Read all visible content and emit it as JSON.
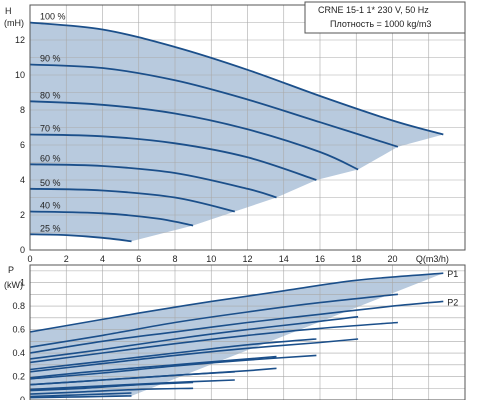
{
  "chart_data": [
    {
      "type": "line",
      "xlabel": "Q(m3/h)",
      "ylabel_top": "H",
      "ylabel_unit": "(mH)",
      "xlim": [
        0,
        24
      ],
      "ylim": [
        0,
        14
      ],
      "x_ticks": [
        0,
        2,
        4,
        6,
        8,
        10,
        12,
        14,
        16,
        18,
        20
      ],
      "y_ticks": [
        0,
        2,
        4,
        6,
        8,
        10,
        12
      ],
      "grid": true,
      "info_box": [
        "CRNE 15-1   1* 230 V, 50 Hz",
        "Плотность = 1000 kg/m3"
      ],
      "series": [
        {
          "name": "100 %",
          "x": [
            0,
            4,
            8,
            12,
            16,
            20,
            22.8
          ],
          "y": [
            13.0,
            12.6,
            11.6,
            10.3,
            8.8,
            7.4,
            6.6
          ]
        },
        {
          "name": "90 %",
          "x": [
            0,
            4,
            8,
            12,
            16,
            20.3
          ],
          "y": [
            10.6,
            10.4,
            9.7,
            8.6,
            7.3,
            5.9
          ]
        },
        {
          "name": "80 %",
          "x": [
            0,
            4,
            8,
            12,
            16,
            18.1
          ],
          "y": [
            8.5,
            8.3,
            7.8,
            6.9,
            5.6,
            4.6
          ]
        },
        {
          "name": "70 %",
          "x": [
            0,
            4,
            8,
            12,
            15.8
          ],
          "y": [
            6.6,
            6.5,
            6.1,
            5.3,
            4.0
          ]
        },
        {
          "name": "60 %",
          "x": [
            0,
            4,
            8,
            12,
            13.6
          ],
          "y": [
            4.9,
            4.8,
            4.4,
            3.5,
            3.0
          ]
        },
        {
          "name": "50 %",
          "x": [
            0,
            4,
            8,
            11.3
          ],
          "y": [
            3.5,
            3.4,
            3.0,
            2.2
          ]
        },
        {
          "name": "40 %",
          "x": [
            0,
            4,
            7,
            9.0
          ],
          "y": [
            2.2,
            2.1,
            1.8,
            1.4
          ]
        },
        {
          "name": "25 %",
          "x": [
            0,
            2,
            4,
            5.6
          ],
          "y": [
            0.9,
            0.85,
            0.7,
            0.5
          ]
        }
      ]
    },
    {
      "type": "line",
      "ylabel_top": "P",
      "ylabel_unit": "(kW)",
      "xlim": [
        0,
        24
      ],
      "ylim": [
        0,
        1.15
      ],
      "y_ticks": [
        0,
        0.2,
        0.4,
        0.6,
        0.8,
        1
      ],
      "grid": true,
      "series": [
        {
          "name": "P1",
          "x": [
            0,
            3,
            6,
            10,
            14,
            18,
            22.8
          ],
          "y": [
            0.58,
            0.66,
            0.74,
            0.84,
            0.93,
            1.02,
            1.08
          ]
        },
        {
          "name": "P2",
          "x": [
            0,
            4,
            8,
            12,
            16,
            20,
            22.8
          ],
          "y": [
            0.4,
            0.5,
            0.58,
            0.66,
            0.73,
            0.8,
            0.84
          ]
        },
        {
          "name": "",
          "x": [
            0,
            4,
            8,
            12,
            16,
            20.3
          ],
          "y": [
            0.45,
            0.55,
            0.66,
            0.75,
            0.83,
            0.9
          ]
        },
        {
          "name": "",
          "x": [
            0,
            4,
            8,
            12,
            16,
            20.3
          ],
          "y": [
            0.32,
            0.4,
            0.48,
            0.55,
            0.61,
            0.66
          ]
        },
        {
          "name": "",
          "x": [
            0,
            4,
            8,
            12,
            16,
            18.1
          ],
          "y": [
            0.35,
            0.43,
            0.52,
            0.6,
            0.67,
            0.71
          ]
        },
        {
          "name": "",
          "x": [
            0,
            4,
            8,
            12,
            16,
            18.1
          ],
          "y": [
            0.24,
            0.31,
            0.38,
            0.44,
            0.49,
            0.52
          ]
        },
        {
          "name": "",
          "x": [
            0,
            4,
            8,
            12,
            15.8
          ],
          "y": [
            0.26,
            0.33,
            0.4,
            0.47,
            0.52
          ]
        },
        {
          "name": "",
          "x": [
            0,
            4,
            8,
            12,
            15.8
          ],
          "y": [
            0.18,
            0.23,
            0.29,
            0.34,
            0.38
          ]
        },
        {
          "name": "",
          "x": [
            0,
            4,
            8,
            12,
            13.6
          ],
          "y": [
            0.19,
            0.25,
            0.3,
            0.35,
            0.37
          ]
        },
        {
          "name": "",
          "x": [
            0,
            4,
            8,
            12,
            13.6
          ],
          "y": [
            0.13,
            0.17,
            0.21,
            0.25,
            0.27
          ]
        },
        {
          "name": "",
          "x": [
            0,
            4,
            8,
            11.3
          ],
          "y": [
            0.13,
            0.17,
            0.21,
            0.24
          ]
        },
        {
          "name": "",
          "x": [
            0,
            4,
            8,
            11.3
          ],
          "y": [
            0.09,
            0.12,
            0.15,
            0.17
          ]
        },
        {
          "name": "",
          "x": [
            0,
            3,
            6,
            9.0
          ],
          "y": [
            0.08,
            0.1,
            0.13,
            0.15
          ]
        },
        {
          "name": "",
          "x": [
            0,
            3,
            6,
            9.0
          ],
          "y": [
            0.05,
            0.07,
            0.09,
            0.1
          ]
        },
        {
          "name": "",
          "x": [
            0,
            2,
            4,
            5.6
          ],
          "y": [
            0.03,
            0.04,
            0.05,
            0.06
          ]
        },
        {
          "name": "",
          "x": [
            0,
            2,
            4,
            5.6
          ],
          "y": [
            0.02,
            0.025,
            0.03,
            0.035
          ]
        }
      ]
    }
  ],
  "colors": {
    "curve": "#1b4f8a",
    "fill": "#b8cade",
    "grid": "#a9a9a9",
    "frame": "#555555",
    "text": "#222222"
  }
}
